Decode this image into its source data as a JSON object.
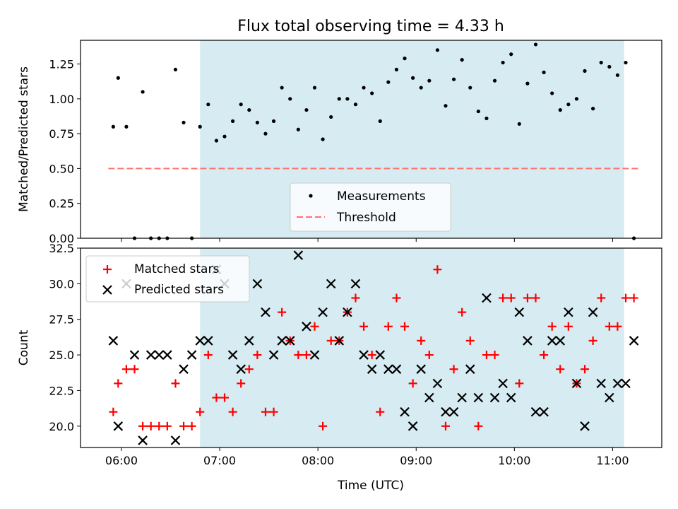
{
  "chart_data": [
    {
      "type": "scatter",
      "title": "Flux total observing time = 4.33 h",
      "ylabel": "Matched/Predicted stars",
      "xlabel": "",
      "xlim": [
        "05:35",
        "11:30"
      ],
      "ylim": [
        0.0,
        1.42
      ],
      "x_ticks": [
        "06:00",
        "07:00",
        "08:00",
        "09:00",
        "10:00",
        "11:00"
      ],
      "y_ticks": [
        "0.00",
        "0.25",
        "0.50",
        "0.75",
        "1.00",
        "1.25"
      ],
      "shaded_range": [
        "06:48",
        "11:07"
      ],
      "legend": {
        "placement": "lower center",
        "entries": [
          "Measurements",
          "Threshold"
        ]
      },
      "series": [
        {
          "name": "Measurements",
          "marker": "dot",
          "color": "#000000",
          "x": [
            "05:55",
            "05:58",
            "06:03",
            "06:08",
            "06:13",
            "06:18",
            "06:23",
            "06:28",
            "06:33",
            "06:38",
            "06:43",
            "06:48",
            "06:53",
            "06:58",
            "07:03",
            "07:08",
            "07:13",
            "07:18",
            "07:23",
            "07:28",
            "07:33",
            "07:38",
            "07:43",
            "07:48",
            "07:53",
            "07:58",
            "08:03",
            "08:08",
            "08:13",
            "08:18",
            "08:23",
            "08:28",
            "08:33",
            "08:38",
            "08:43",
            "08:48",
            "08:53",
            "08:58",
            "09:03",
            "09:08",
            "09:13",
            "09:18",
            "09:23",
            "09:28",
            "09:33",
            "09:38",
            "09:43",
            "09:48",
            "09:53",
            "09:58",
            "10:03",
            "10:08",
            "10:13",
            "10:18",
            "10:23",
            "10:28",
            "10:33",
            "10:38",
            "10:43",
            "10:48",
            "10:53",
            "10:58",
            "11:03",
            "11:08",
            "11:13"
          ],
          "y": [
            0.8,
            1.15,
            0.8,
            0.0,
            1.05,
            0.0,
            0.0,
            0.0,
            1.21,
            0.83,
            0.0,
            0.8,
            0.96,
            0.7,
            0.73,
            0.84,
            0.96,
            0.92,
            0.83,
            0.75,
            0.84,
            1.08,
            1.0,
            0.78,
            0.92,
            1.08,
            0.71,
            0.87,
            1.0,
            1.0,
            0.96,
            1.08,
            1.04,
            0.84,
            1.12,
            1.21,
            1.29,
            1.15,
            1.08,
            1.13,
            1.35,
            0.95,
            1.14,
            1.28,
            1.08,
            0.91,
            0.86,
            1.13,
            1.26,
            1.32,
            0.82,
            1.11,
            1.39,
            1.19,
            1.04,
            0.92,
            0.96,
            1.0,
            1.2,
            0.93,
            1.26,
            1.23,
            1.17,
            1.26,
            0.0
          ]
        },
        {
          "name": "Threshold",
          "style": "dashed",
          "color": "#ff7070",
          "x": [
            "05:52",
            "11:16"
          ],
          "y": [
            0.5,
            0.5
          ]
        }
      ]
    },
    {
      "type": "scatter",
      "title": "",
      "ylabel": "Count",
      "xlabel": "Time (UTC)",
      "xlim": [
        "05:35",
        "11:30"
      ],
      "ylim": [
        18.5,
        32.5
      ],
      "x_ticks": [
        "06:00",
        "07:00",
        "08:00",
        "09:00",
        "10:00",
        "11:00"
      ],
      "y_ticks": [
        "20.0",
        "22.5",
        "25.0",
        "27.5",
        "30.0",
        "32.5"
      ],
      "shaded_range": [
        "06:48",
        "11:07"
      ],
      "legend": {
        "placement": "upper left",
        "entries": [
          "Matched stars",
          "Predicted stars"
        ]
      },
      "series": [
        {
          "name": "Matched stars",
          "marker": "plus",
          "color": "#ff0000",
          "x": [
            "05:55",
            "05:58",
            "06:03",
            "06:08",
            "06:13",
            "06:18",
            "06:23",
            "06:28",
            "06:33",
            "06:38",
            "06:43",
            "06:48",
            "06:53",
            "06:58",
            "07:03",
            "07:08",
            "07:13",
            "07:18",
            "07:23",
            "07:28",
            "07:33",
            "07:38",
            "07:43",
            "07:48",
            "07:53",
            "07:58",
            "08:03",
            "08:08",
            "08:13",
            "08:18",
            "08:23",
            "08:28",
            "08:33",
            "08:38",
            "08:43",
            "08:48",
            "08:53",
            "08:58",
            "09:03",
            "09:08",
            "09:13",
            "09:18",
            "09:23",
            "09:28",
            "09:33",
            "09:38",
            "09:43",
            "09:48",
            "09:53",
            "09:58",
            "10:03",
            "10:08",
            "10:13",
            "10:18",
            "10:23",
            "10:28",
            "10:33",
            "10:38",
            "10:43",
            "10:48",
            "10:53",
            "10:58",
            "11:03",
            "11:08",
            "11:13"
          ],
          "y": [
            21,
            23,
            24,
            24,
            20,
            20,
            20,
            20,
            23,
            20,
            20,
            21,
            25,
            22,
            22,
            21,
            23,
            24,
            25,
            21,
            21,
            28,
            26,
            25,
            25,
            27,
            20,
            26,
            26,
            28,
            29,
            27,
            25,
            21,
            27,
            29,
            27,
            23,
            26,
            25,
            31,
            20,
            24,
            28,
            26,
            20,
            25,
            25,
            29,
            29,
            23,
            29,
            29,
            25,
            27,
            24,
            27,
            23,
            24,
            26,
            29,
            27,
            27,
            29,
            29
          ]
        },
        {
          "name": "Predicted stars",
          "marker": "x",
          "color": "#000000",
          "x": [
            "05:55",
            "05:58",
            "06:03",
            "06:08",
            "06:13",
            "06:18",
            "06:23",
            "06:28",
            "06:33",
            "06:38",
            "06:43",
            "06:48",
            "06:53",
            "06:58",
            "07:03",
            "07:08",
            "07:13",
            "07:18",
            "07:23",
            "07:28",
            "07:33",
            "07:38",
            "07:43",
            "07:48",
            "07:53",
            "07:58",
            "08:03",
            "08:08",
            "08:13",
            "08:18",
            "08:23",
            "08:28",
            "08:33",
            "08:38",
            "08:43",
            "08:48",
            "08:53",
            "08:58",
            "09:03",
            "09:08",
            "09:13",
            "09:18",
            "09:23",
            "09:28",
            "09:33",
            "09:38",
            "09:43",
            "09:48",
            "09:53",
            "09:58",
            "10:03",
            "10:08",
            "10:13",
            "10:18",
            "10:23",
            "10:28",
            "10:33",
            "10:38",
            "10:43",
            "10:48",
            "10:53",
            "10:58",
            "11:03",
            "11:08",
            "11:13"
          ],
          "y": [
            26,
            20,
            30,
            25,
            19,
            25,
            25,
            25,
            19,
            24,
            25,
            26,
            26,
            31,
            30,
            25,
            24,
            26,
            30,
            28,
            25,
            26,
            26,
            32,
            27,
            25,
            28,
            30,
            26,
            28,
            30,
            25,
            24,
            25,
            24,
            24,
            21,
            20,
            24,
            22,
            23,
            21,
            21,
            22,
            24,
            22,
            29,
            22,
            23,
            22,
            28,
            26,
            21,
            21,
            26,
            26,
            28,
            23,
            20,
            28,
            23,
            22,
            23,
            23,
            26
          ]
        }
      ]
    }
  ]
}
